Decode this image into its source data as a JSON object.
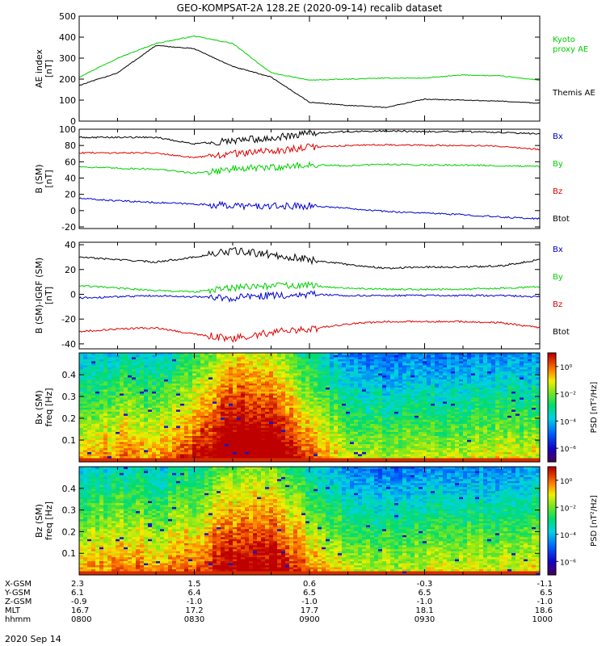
{
  "figure": {
    "title": "GEO-KOMPSAT-2A 128.2E (2020-09-14) recalib dataset",
    "footer_date": "2020 Sep 14"
  },
  "colors": {
    "black": "#000000",
    "red": "#e00000",
    "green": "#00d000",
    "blue": "#0000d0",
    "kyoto": "#00cc00"
  },
  "x_axis": {
    "rows": [
      {
        "label": "X-GSM",
        "values": [
          "2.3",
          "1.5",
          "0.6",
          "-0.3",
          "-1.1"
        ]
      },
      {
        "label": "Y-GSM",
        "values": [
          "6.1",
          "6.4",
          "6.5",
          "6.5",
          "6.5"
        ]
      },
      {
        "label": "Z-GSM",
        "values": [
          "-0.9",
          "-1.0",
          "-1.0",
          "-1.0",
          "-1.0"
        ]
      },
      {
        "label": "MLT",
        "values": [
          "16.7",
          "17.2",
          "17.7",
          "18.1",
          "18.6"
        ]
      },
      {
        "label": "hhmm",
        "values": [
          "0800",
          "0830",
          "0900",
          "0930",
          "1000"
        ]
      }
    ]
  },
  "chart_data": [
    {
      "type": "line",
      "panel": "AE index",
      "ylabel": "AE index\n[nT]",
      "ylim": [
        0,
        500
      ],
      "yticks": [
        "0",
        "100",
        "200",
        "300",
        "400",
        "500"
      ],
      "x_time": [
        "08:00",
        "08:10",
        "08:20",
        "08:30",
        "08:40",
        "08:50",
        "09:00",
        "09:10",
        "09:20",
        "09:30",
        "09:40",
        "09:50",
        "10:00"
      ],
      "series": [
        {
          "name": "Kyoto\nproxy AE",
          "color": "green",
          "values": [
            210,
            300,
            370,
            405,
            370,
            230,
            195,
            200,
            205,
            205,
            220,
            215,
            195
          ]
        },
        {
          "name": "Themis AE",
          "color": "black",
          "values": [
            170,
            230,
            360,
            345,
            260,
            210,
            90,
            75,
            65,
            105,
            100,
            95,
            85
          ]
        }
      ]
    },
    {
      "type": "line",
      "panel": "B (SM)",
      "ylabel": "B (SM)\n[nT]",
      "ylim": [
        -22,
        100
      ],
      "yticks": [
        "-20",
        "0",
        "20",
        "40",
        "60",
        "80",
        "100"
      ],
      "x_time": [
        "08:00",
        "08:10",
        "08:20",
        "08:30",
        "08:40",
        "08:50",
        "09:00",
        "09:10",
        "09:20",
        "09:30",
        "09:40",
        "09:50",
        "10:00"
      ],
      "series_labels": [
        "Bx",
        "By",
        "Bz",
        "Btot"
      ],
      "series": [
        {
          "name": "Bx",
          "color": "blue",
          "values": [
            15,
            12,
            10,
            8,
            6,
            5,
            6,
            3,
            -1,
            -3,
            -5,
            -8,
            -10
          ]
        },
        {
          "name": "By",
          "color": "green",
          "values": [
            54,
            52,
            51,
            46,
            51,
            53,
            56,
            55,
            57,
            56,
            56,
            55,
            54
          ]
        },
        {
          "name": "Bz",
          "color": "red",
          "values": [
            71,
            71,
            71,
            65,
            70,
            73,
            78,
            80,
            81,
            80,
            80,
            79,
            75
          ]
        },
        {
          "name": "Btot",
          "color": "black",
          "values": [
            90,
            90,
            90,
            82,
            86,
            89,
            95,
            97,
            98,
            97,
            97,
            96,
            94
          ]
        }
      ]
    },
    {
      "type": "line",
      "panel": "B (SM)-IGRF (SM)",
      "ylabel": "B (SM)-IGRF (SM)\n[nT]",
      "ylim": [
        -44,
        42
      ],
      "yticks": [
        "-40",
        "-20",
        "0",
        "20",
        "40"
      ],
      "x_time": [
        "08:00",
        "08:10",
        "08:20",
        "08:30",
        "08:40",
        "08:50",
        "09:00",
        "09:10",
        "09:20",
        "09:30",
        "09:40",
        "09:50",
        "10:00"
      ],
      "series_labels": [
        "Bx",
        "By",
        "Bz",
        "Btot"
      ],
      "series": [
        {
          "name": "Btot",
          "color": "black",
          "values": [
            30,
            28,
            26,
            30,
            35,
            32,
            28,
            24,
            21,
            22,
            22,
            23,
            28
          ]
        },
        {
          "name": "By",
          "color": "green",
          "values": [
            7,
            5,
            3,
            2,
            5,
            7,
            7,
            5,
            4,
            4,
            4,
            5,
            6
          ]
        },
        {
          "name": "Bx",
          "color": "blue",
          "values": [
            -3,
            -2,
            -1,
            -2,
            -3,
            -1,
            0,
            -1,
            -1,
            -1,
            -1,
            -1,
            -2
          ]
        },
        {
          "name": "Bz",
          "color": "red",
          "values": [
            -30,
            -28,
            -27,
            -32,
            -36,
            -31,
            -28,
            -24,
            -22,
            -22,
            -22,
            -23,
            -27
          ]
        }
      ]
    },
    {
      "type": "heatmap",
      "panel": "Bx (SM)",
      "ylabel": "Bx (SM)\nfreq [Hz]",
      "ylim": [
        0,
        0.5
      ],
      "yticks": [
        "0.1",
        "0.2",
        "0.3",
        "0.4"
      ],
      "colorbar_label": "PSD [nT²/Hz]",
      "colorbar_ticks": [
        "10⁰",
        "10⁻²",
        "10⁻⁴",
        "10⁻⁶"
      ],
      "colorbar_log_range": [
        -7,
        1
      ],
      "intensity_by_10min": [
        0.5,
        0.58,
        0.55,
        0.68,
        0.88,
        0.86,
        0.62,
        0.44,
        0.4,
        0.42,
        0.44,
        0.45,
        0.47
      ]
    },
    {
      "type": "heatmap",
      "panel": "Bz (SM)",
      "ylabel": "Bz (SM)\nfreq [Hz]",
      "ylim": [
        0,
        0.5
      ],
      "yticks": [
        "0.1",
        "0.2",
        "0.3",
        "0.4"
      ],
      "colorbar_label": "PSD [nT²/Hz]",
      "colorbar_ticks": [
        "10⁰",
        "10⁻²",
        "10⁻⁴",
        "10⁻⁶"
      ],
      "colorbar_log_range": [
        -7,
        1
      ],
      "intensity_by_10min": [
        0.52,
        0.6,
        0.56,
        0.63,
        0.78,
        0.8,
        0.6,
        0.46,
        0.42,
        0.43,
        0.45,
        0.46,
        0.48
      ]
    }
  ]
}
